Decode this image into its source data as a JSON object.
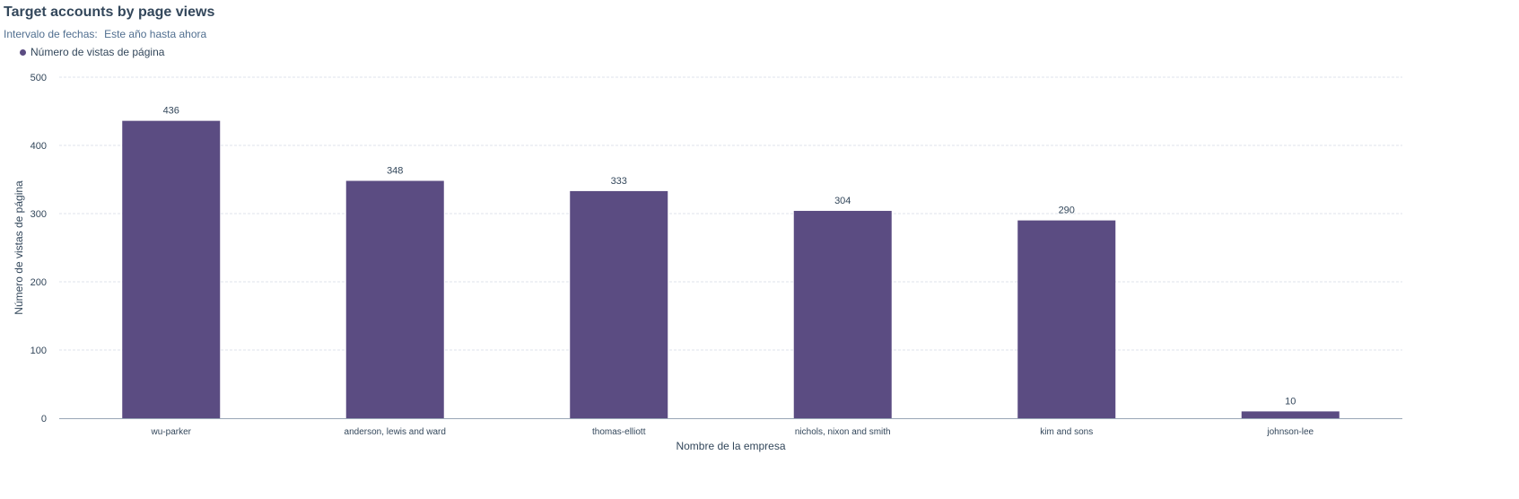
{
  "report": {
    "title": "Target accounts by page views",
    "date_range_label": "Intervalo de fechas:",
    "date_range_value": "Este año hasta ahora"
  },
  "colors": {
    "bar": "#5b4c82",
    "grid": "#dfe3eb",
    "axis": "#99a6b6",
    "text": "#33475b"
  },
  "chart_data": {
    "type": "bar",
    "title": "Target accounts by page views",
    "categories": [
      "wu-parker",
      "anderson, lewis and ward",
      "thomas-elliott",
      "nichols, nixon and smith",
      "kim and sons",
      "johnson-lee"
    ],
    "series": [
      {
        "name": "Número de vistas de página",
        "values": [
          436,
          348,
          333,
          304,
          290,
          10
        ]
      }
    ],
    "xlabel": "Nombre de la empresa",
    "ylabel": "Número de vistas de página",
    "ylim": [
      0,
      500
    ],
    "yticks": [
      0,
      100,
      200,
      300,
      400,
      500
    ],
    "grid": true,
    "legend": "top-left",
    "data_labels": true
  }
}
